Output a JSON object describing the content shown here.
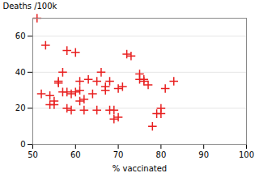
{
  "chart_data": {
    "type": "scatter",
    "xlabel": "% vaccinated",
    "ylabel": "Deaths /100k",
    "xlim": [
      50,
      100
    ],
    "ylim": [
      0,
      70
    ],
    "xticks": [
      50,
      60,
      70,
      80,
      90,
      100
    ],
    "yticks": [
      0,
      20,
      40,
      60
    ],
    "color": "#e82020",
    "marker": "plus",
    "grid": "y",
    "x": [
      51,
      52,
      53,
      54,
      54,
      55,
      55,
      56,
      56,
      57,
      57,
      58,
      58,
      58,
      59,
      59,
      60,
      60,
      61,
      61,
      61,
      62,
      62,
      63,
      64,
      65,
      65,
      66,
      67,
      67,
      68,
      68,
      69,
      69,
      70,
      70,
      71,
      72,
      73,
      75,
      75,
      76,
      76,
      77,
      78,
      79,
      80,
      80,
      81,
      83
    ],
    "y": [
      70,
      28,
      55,
      22,
      27,
      22,
      24,
      34,
      35,
      29,
      40,
      20,
      29,
      52,
      19,
      28,
      29,
      51,
      24,
      30,
      35,
      19,
      25,
      36,
      28,
      19,
      35,
      40,
      30,
      32,
      19,
      35,
      14,
      19,
      15,
      31,
      32,
      50,
      49,
      36,
      39,
      35,
      36,
      33,
      10,
      17,
      17,
      20,
      31,
      35
    ]
  }
}
